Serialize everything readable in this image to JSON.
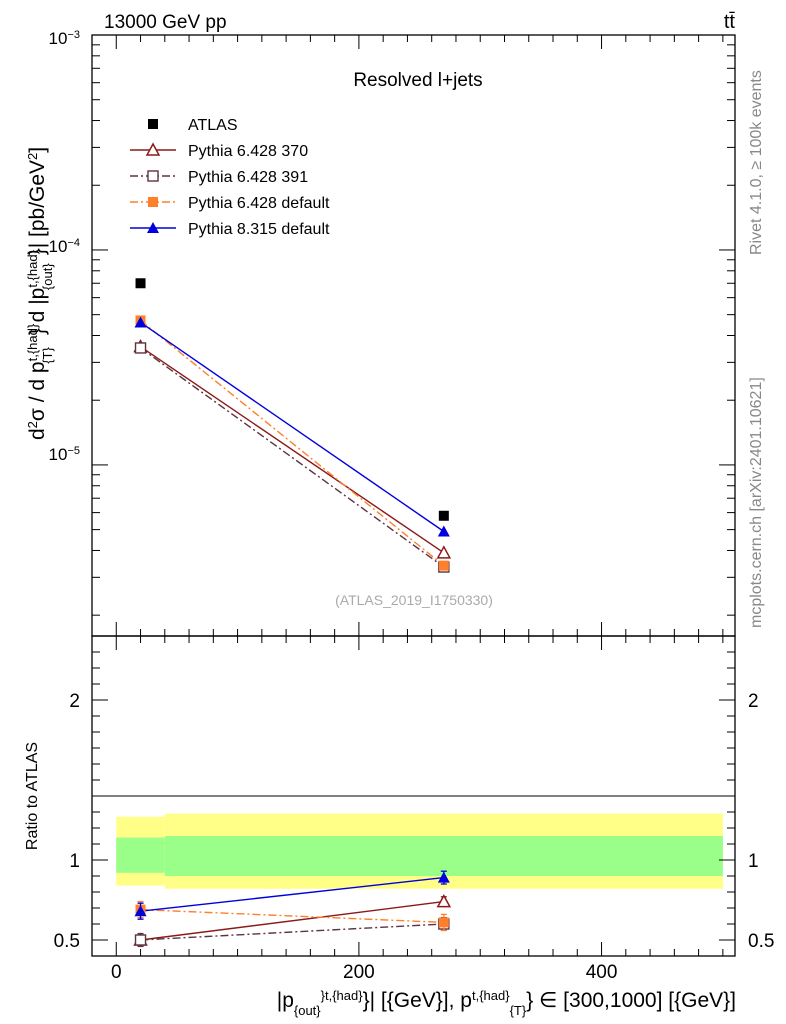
{
  "header": {
    "energy_label": "13000 GeV pp",
    "process_label": "tt̄"
  },
  "side_text": {
    "rivet": "Rivet 4.1.0, ≥ 100k events",
    "source": "mcplots.cern.ch [arXiv:2401.10621]"
  },
  "chart_data": [
    {
      "id": "main",
      "type": "line",
      "title": "Resolved l+jets",
      "watermark": "(ATLAS_2019_I1750330)",
      "ylabel": "d²σ / d p_T^{t,{had}} d |p_{out}^{t,{had}}| [pb/GeV²]",
      "yscale": "log",
      "ylim": [
        1.6e-06,
        0.001
      ],
      "xlim": [
        -20,
        510
      ],
      "y_tick_labels": [
        "10⁻³",
        "10⁻⁴",
        "10⁻⁵"
      ],
      "legend": [
        "ATLAS",
        "Pythia 6.428 370",
        "Pythia 6.428 391",
        "Pythia 6.428 default",
        "Pythia 8.315 default"
      ],
      "x": [
        20,
        270
      ],
      "series": [
        {
          "name": "ATLAS",
          "values": [
            7e-05,
            5.8e-06
          ],
          "color": "#000000",
          "marker": "square-filled",
          "line": "none"
        },
        {
          "name": "Pythia 6.428 370",
          "values": [
            3.55e-05,
            3.9e-06
          ],
          "color": "#8b1a1a",
          "marker": "triangle-open",
          "line": "solid"
        },
        {
          "name": "Pythia 6.428 391",
          "values": [
            3.5e-05,
            3.35e-06
          ],
          "color": "#5c3340",
          "marker": "square-open",
          "line": "dashdot"
        },
        {
          "name": "Pythia 6.428 default",
          "values": [
            4.7e-05,
            3.4e-06
          ],
          "color": "#ff7f2a",
          "marker": "square-filled",
          "line": "dashdot"
        },
        {
          "name": "Pythia 8.315 default",
          "values": [
            4.6e-05,
            4.9e-06
          ],
          "color": "#0000dd",
          "marker": "triangle-filled",
          "line": "solid"
        }
      ]
    },
    {
      "id": "ratio",
      "type": "line",
      "ylabel": "Ratio to ATLAS",
      "ylim": [
        0.4,
        2.4
      ],
      "xlim": [
        -20,
        510
      ],
      "xlabel": "|p_{out}^{t,{had}}| [{GeV}], p_T^{t,{had}} ∈ [300,1000] [{GeV}]",
      "x_ticks": [
        0,
        200,
        400
      ],
      "y_ticks": [
        0.5,
        1,
        2
      ],
      "x": [
        20,
        270
      ],
      "bands": [
        {
          "x_range": [
            0,
            40
          ],
          "yellow": [
            0.84,
            1.27
          ],
          "green": [
            0.92,
            1.14
          ]
        },
        {
          "x_range": [
            40,
            500
          ],
          "yellow": [
            0.82,
            1.29
          ],
          "green": [
            0.9,
            1.15
          ]
        }
      ],
      "series": [
        {
          "name": "Pythia 6.428 370",
          "values": [
            0.5,
            0.74
          ],
          "errors": [
            0.04,
            0.03
          ],
          "color": "#8b1a1a",
          "marker": "triangle-open",
          "line": "solid"
        },
        {
          "name": "Pythia 6.428 391",
          "values": [
            0.5,
            0.6
          ],
          "errors": [
            0.04,
            0.04
          ],
          "color": "#5c3340",
          "marker": "square-open",
          "line": "dashdot"
        },
        {
          "name": "Pythia 6.428 default",
          "values": [
            0.69,
            0.61
          ],
          "errors": [
            0.05,
            0.05
          ],
          "color": "#ff7f2a",
          "marker": "square-filled",
          "line": "dashdot"
        },
        {
          "name": "Pythia 8.315 default",
          "values": [
            0.68,
            0.89
          ],
          "errors": [
            0.05,
            0.04
          ],
          "color": "#0000dd",
          "marker": "triangle-filled",
          "line": "solid"
        }
      ]
    }
  ]
}
